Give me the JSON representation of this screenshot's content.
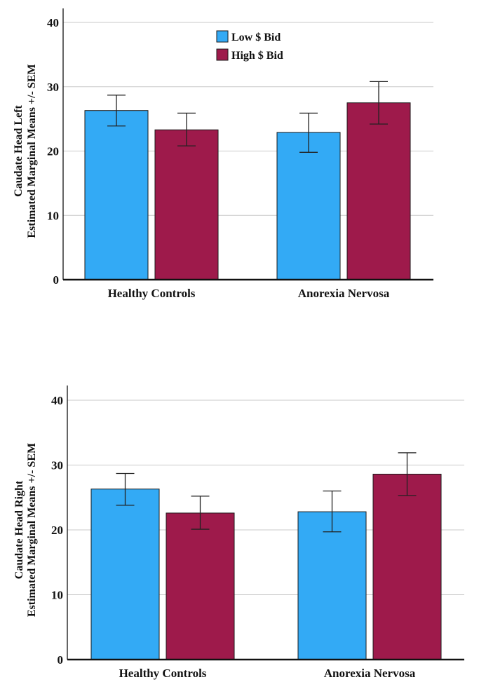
{
  "colors": {
    "low": "#33aaf5",
    "high": "#9e1a4b",
    "grid": "#c8c8c8",
    "axis": "#111111",
    "error": "#222222"
  },
  "legend": {
    "low_label": "Low $ Bid",
    "high_label": "High $ Bid"
  },
  "chart_data": [
    {
      "type": "bar",
      "title": "",
      "ylabel_line1": "Caudate Head Left",
      "ylabel_line2": "Estimated Marginal Means +/- SEM",
      "xlabel": "",
      "ylim": [
        0,
        40
      ],
      "yticks": [
        0,
        10,
        20,
        30,
        40
      ],
      "grid": true,
      "legend": "top-center",
      "categories": [
        "Healthy Controls",
        "Anorexia Nervosa"
      ],
      "series": [
        {
          "name": "Low $ Bid",
          "values": [
            26.3,
            22.9
          ],
          "err_low": [
            23.9,
            19.8
          ],
          "err_high": [
            28.7,
            25.9
          ]
        },
        {
          "name": "High $ Bid",
          "values": [
            23.3,
            27.5
          ],
          "err_low": [
            20.8,
            24.2
          ],
          "err_high": [
            25.9,
            30.8
          ]
        }
      ]
    },
    {
      "type": "bar",
      "title": "",
      "ylabel_line1": "Caudate Head Right",
      "ylabel_line2": "Estimated Marginal Means +/- SEM",
      "xlabel": "",
      "ylim": [
        0,
        40
      ],
      "yticks": [
        0,
        10,
        20,
        30,
        40
      ],
      "grid": true,
      "legend": "none",
      "categories": [
        "Healthy Controls",
        "Anorexia Nervosa"
      ],
      "series": [
        {
          "name": "Low $ Bid",
          "values": [
            26.3,
            22.8
          ],
          "err_low": [
            23.8,
            19.7
          ],
          "err_high": [
            28.7,
            26.0
          ]
        },
        {
          "name": "High $ Bid",
          "values": [
            22.6,
            28.6
          ],
          "err_low": [
            20.1,
            25.3
          ],
          "err_high": [
            25.2,
            31.9
          ]
        }
      ]
    }
  ]
}
